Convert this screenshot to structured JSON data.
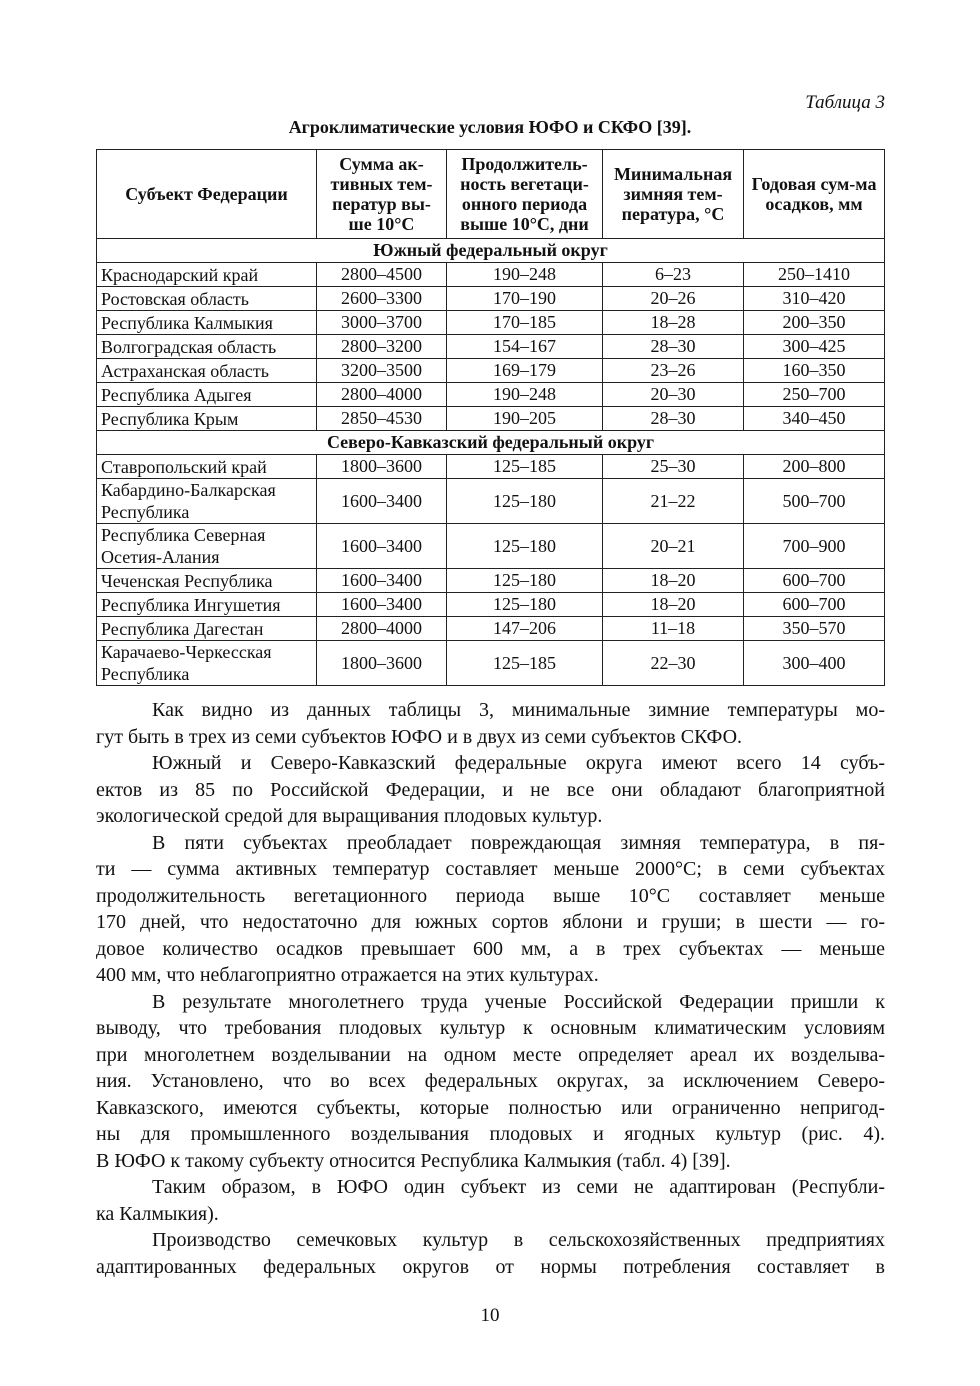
{
  "table_label": "Таблица 3",
  "table_title": "Агроклиматические условия ЮФО и СКФО [39].",
  "table": {
    "headers": [
      "Субъект Федерации",
      "Сумма ак-тивных тем-ператур вы-ше 10°С",
      "Продолжитель-ность вегетаци-онного периода выше 10°С, дни",
      "Минимальная зимняя тем-пература, °С",
      "Годовая сум-ма осадков, мм"
    ],
    "groups": [
      {
        "name": "Южный федеральный округ",
        "rows": [
          [
            "Краснодарский край",
            "2800–4500",
            "190–248",
            "6–23",
            "250–1410"
          ],
          [
            "Ростовская область",
            "2600–3300",
            "170–190",
            "20–26",
            "310–420"
          ],
          [
            "Республика Калмыкия",
            "3000–3700",
            "170–185",
            "18–28",
            "200–350"
          ],
          [
            "Волгоградская область",
            "2800–3200",
            "154–167",
            "28–30",
            "300–425"
          ],
          [
            "Астраханская область",
            "3200–3500",
            "169–179",
            "23–26",
            "160–350"
          ],
          [
            "Республика Адыгея",
            "2800–4000",
            "190–248",
            "20–30",
            "250–700"
          ],
          [
            "Республика Крым",
            "2850–4530",
            "190–205",
            "28–30",
            "340–450"
          ]
        ]
      },
      {
        "name": "Северо-Кавказский федеральный округ",
        "rows": [
          [
            "Ставропольский край",
            "1800–3600",
            "125–185",
            "25–30",
            "200–800"
          ],
          [
            "Кабардино-Балкарская Республика",
            "1600–3400",
            "125–180",
            "21–22",
            "500–700"
          ],
          [
            "Республика Северная Осетия-Алания",
            "1600–3400",
            "125–180",
            "20–21",
            "700–900"
          ],
          [
            "Чеченская Республика",
            "1600–3400",
            "125–180",
            "18–20",
            "600–700"
          ],
          [
            "Республика Ингушетия",
            "1600–3400",
            "125–180",
            "18–20",
            "600–700"
          ],
          [
            "Республика Дагестан",
            "2800–4000",
            "147–206",
            "11–18",
            "350–570"
          ],
          [
            "Карачаево-Черкесская Республика",
            "1800–3600",
            "125–185",
            "22–30",
            "300–400"
          ]
        ]
      }
    ]
  },
  "paragraphs": [
    [
      "Как видно из данных таблицы 3, минимальные зимние температуры мо-",
      "гут быть в трех из семи субъектов ЮФО и в двух из семи субъектов СКФО."
    ],
    [
      "Южный и Северо-Кавказский федеральные округа имеют всего 14 субъ-",
      "ектов из 85 по Российской Федерации, и не все они обладают благоприятной",
      "экологической средой для выращивания плодовых культур."
    ],
    [
      "В пяти субъектах преобладает повреждающая зимняя температура, в пя-",
      "ти — сумма активных температур составляет меньше 2000°С; в семи субъектах",
      "продолжительность вегетационного периода выше 10°С составляет меньше",
      "170 дней, что недостаточно для южных сортов яблони и груши; в шести — го-",
      "довое количество осадков превышает 600 мм, а в трех субъектах — меньше",
      "400 мм, что неблагоприятно отражается на этих культурах."
    ],
    [
      "В результате многолетнего труда ученые Российской Федерации пришли к",
      "выводу, что требования плодовых культур к основным климатическим условиям",
      "при многолетнем возделывании на одном месте определяет ареал их возделыва-",
      "ния. Установлено, что во всех федеральных округах, за исключением Северо-",
      "Кавказского, имеются субъекты, которые полностью или ограниченно непригод-",
      "ны для промышленного возделывания плодовых и ягодных культур (рис. 4).",
      "В ЮФО к такому субъекту относится Республика Калмыкия (табл. 4) [39]."
    ],
    [
      "Таким образом, в ЮФО один субъект из семи не адаптирован (Республи-",
      "ка Калмыкия)."
    ],
    [
      "Производство семечковых культур в сельскохозяйственных предприятиях",
      "адаптированных федеральных округов от нормы потребления составляет в"
    ]
  ],
  "page_number": "10"
}
